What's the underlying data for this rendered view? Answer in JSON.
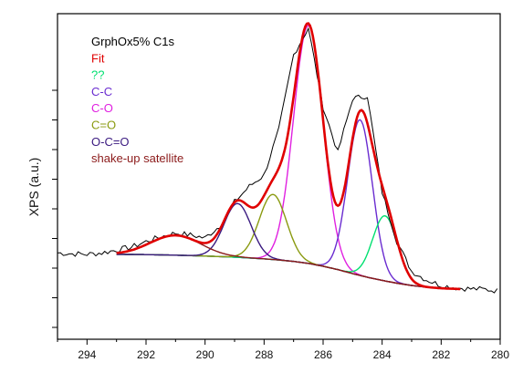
{
  "chart_data": {
    "type": "line",
    "title": "",
    "xlabel": "",
    "ylabel": "XPS (a.u.)",
    "xlim": [
      295,
      280
    ],
    "x_reversed": true,
    "ylim": [
      -0.1,
      1.05
    ],
    "x_ticks": [
      294,
      292,
      290,
      288,
      286,
      284,
      282,
      280
    ],
    "y_ticks_labeled": false,
    "grid": false,
    "legend_position": "top-left",
    "legend": [
      {
        "label": "GrphOx5% C1s",
        "color": "#000000"
      },
      {
        "label": "Fit",
        "color": "#e00000"
      },
      {
        "label": "??",
        "color": "#00e070"
      },
      {
        "label": "C-C",
        "color": "#6a2cd0"
      },
      {
        "label": "C-O",
        "color": "#e020e0"
      },
      {
        "label": "C=O",
        "color": "#8a9a10"
      },
      {
        "label": "O-C=O",
        "color": "#3a1a80"
      },
      {
        "label": "shake-up satellite",
        "color": "#8b1a1a"
      }
    ],
    "background": {
      "name": "Background",
      "x": [
        293,
        292,
        291,
        290,
        289,
        288,
        287.5,
        287,
        286.5,
        286,
        285.5,
        285,
        284.5,
        284,
        283.5,
        283,
        282.5,
        282,
        281.5,
        281.3
      ],
      "values": [
        0.2,
        0.199,
        0.197,
        0.194,
        0.19,
        0.184,
        0.18,
        0.175,
        0.168,
        0.158,
        0.146,
        0.132,
        0.119,
        0.108,
        0.098,
        0.09,
        0.084,
        0.08,
        0.078,
        0.077
      ]
    },
    "peaks": [
      {
        "name": "C-O",
        "center": 286.5,
        "height": 0.84,
        "sigma": 0.5,
        "color": "#e020e0"
      },
      {
        "name": "C-C",
        "center": 284.75,
        "height": 0.55,
        "sigma": 0.42,
        "color": "#6a2cd0"
      },
      {
        "name": "??",
        "center": 283.9,
        "height": 0.23,
        "sigma": 0.42,
        "color": "#00e070"
      },
      {
        "name": "C=O",
        "center": 287.7,
        "height": 0.23,
        "sigma": 0.46,
        "color": "#8a9a10"
      },
      {
        "name": "O-C=O",
        "center": 288.9,
        "height": 0.19,
        "sigma": 0.46,
        "color": "#3a1a80"
      },
      {
        "name": "shake-up satellite",
        "center": 291.0,
        "height": 0.07,
        "sigma": 0.85,
        "color": "#8b1a1a"
      }
    ],
    "series": [
      {
        "name": "GrphOx5% C1s",
        "color": "#000000",
        "x": [
          295,
          294.5,
          294,
          293.5,
          293,
          292.5,
          292,
          291.5,
          291,
          290.5,
          290,
          289.5,
          289,
          288.5,
          288,
          287.5,
          287,
          286.5,
          286,
          285.5,
          285,
          284.5,
          284,
          283.5,
          283,
          282.5,
          282,
          281.5,
          281,
          280.5,
          280
        ],
        "values": [
          0.205,
          0.202,
          0.2,
          0.205,
          0.215,
          0.225,
          0.245,
          0.262,
          0.275,
          0.268,
          0.258,
          0.3,
          0.385,
          0.44,
          0.48,
          0.64,
          0.905,
          1.0,
          0.72,
          0.56,
          0.75,
          0.76,
          0.42,
          0.245,
          0.14,
          0.11,
          0.09,
          0.082,
          0.078,
          0.076,
          0.07
        ]
      }
    ]
  }
}
